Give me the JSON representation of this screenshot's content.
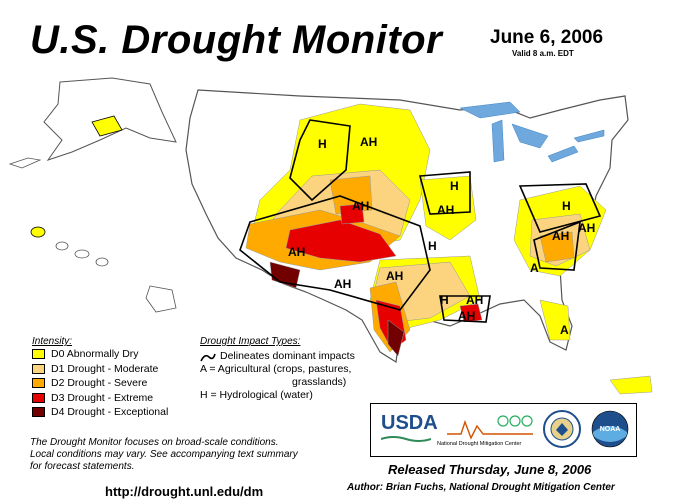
{
  "header": {
    "title": "U.S. Drought Monitor",
    "date": "June 6, 2006",
    "valid": "Valid 8 a.m. EDT"
  },
  "map_labels": [
    "AH",
    "H",
    "AH",
    "H",
    "AH",
    "H",
    "AH",
    "AH",
    "AH",
    "AH",
    "H",
    "AH",
    "AH",
    "H",
    "A",
    "AH",
    "A"
  ],
  "intensity": {
    "title": "Intensity:",
    "items": [
      {
        "label": "D0 Abnormally Dry",
        "color": "#ffff00"
      },
      {
        "label": "D1 Drought - Moderate",
        "color": "#fcd37f"
      },
      {
        "label": "D2 Drought - Severe",
        "color": "#ffaa00"
      },
      {
        "label": "D3 Drought - Extreme",
        "color": "#e60000"
      },
      {
        "label": "D4 Drought - Exceptional",
        "color": "#730000"
      }
    ]
  },
  "impacts": {
    "title": "Drought Impact Types:",
    "line1": "Delineates dominant impacts",
    "line2": "A = Agricultural (crops, pastures,",
    "line3": "grasslands)",
    "line4": "H = Hydrological (water)"
  },
  "footer": {
    "note_line1": "The Drought Monitor focuses on broad-scale conditions.",
    "note_line2": "Local conditions may vary. See accompanying text summary",
    "note_line3": "for forecast statements.",
    "url": "http://drought.unl.edu/dm",
    "released": "Released Thursday, June 8, 2006",
    "author": "Author:  Brian Fuchs, National Drought Mitigation Center"
  },
  "logos": {
    "usda": "USDA",
    "ndmc": "National Drought Mitigation Center",
    "noaa": "NOAA"
  },
  "colors": {
    "water": "#6fa8dc",
    "lake": "#9fc5e8",
    "land": "#ffffff",
    "border": "#888888"
  }
}
